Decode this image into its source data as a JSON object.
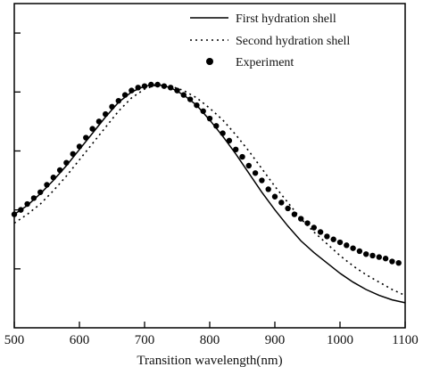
{
  "chart_data": {
    "type": "line",
    "title": "",
    "xlabel": "Transition wavelength(nm)",
    "ylabel": "",
    "xlim": [
      500,
      1100
    ],
    "ylim": [
      0,
      1.1
    ],
    "xticks": [
      500,
      600,
      700,
      800,
      900,
      1000,
      1100
    ],
    "xtick_labels": [
      "500",
      "600",
      "700",
      "800",
      "900",
      "1000",
      "1100"
    ],
    "grid": false,
    "legend_position": "top-right",
    "series": [
      {
        "name": "First hydration shell",
        "style": "solid",
        "color": "#000000",
        "x": [
          500,
          520,
          540,
          560,
          580,
          600,
          620,
          640,
          660,
          680,
          700,
          720,
          740,
          760,
          780,
          800,
          820,
          840,
          860,
          880,
          900,
          920,
          940,
          960,
          980,
          1000,
          1020,
          1040,
          1060,
          1080,
          1100
        ],
        "y": [
          0.385,
          0.415,
          0.455,
          0.5,
          0.55,
          0.605,
          0.66,
          0.715,
          0.765,
          0.8,
          0.82,
          0.825,
          0.815,
          0.79,
          0.755,
          0.705,
          0.65,
          0.59,
          0.525,
          0.46,
          0.4,
          0.345,
          0.295,
          0.255,
          0.22,
          0.185,
          0.155,
          0.13,
          0.11,
          0.095,
          0.085
        ]
      },
      {
        "name": "Second hydration shell",
        "style": "dotted",
        "color": "#000000",
        "x": [
          500,
          520,
          540,
          560,
          580,
          600,
          620,
          640,
          660,
          680,
          700,
          720,
          740,
          760,
          780,
          800,
          820,
          840,
          860,
          880,
          900,
          920,
          940,
          960,
          980,
          1000,
          1020,
          1040,
          1060,
          1080,
          1100
        ],
        "y": [
          0.355,
          0.385,
          0.42,
          0.465,
          0.515,
          0.57,
          0.625,
          0.68,
          0.735,
          0.78,
          0.81,
          0.825,
          0.82,
          0.805,
          0.78,
          0.745,
          0.705,
          0.655,
          0.6,
          0.54,
          0.48,
          0.425,
          0.37,
          0.325,
          0.285,
          0.245,
          0.21,
          0.18,
          0.155,
          0.13,
          0.11
        ]
      },
      {
        "name": "Experiment",
        "style": "markers",
        "color": "#000000",
        "x": [
          500,
          510,
          520,
          530,
          540,
          550,
          560,
          570,
          580,
          590,
          600,
          610,
          620,
          630,
          640,
          650,
          660,
          670,
          680,
          690,
          700,
          710,
          720,
          730,
          740,
          750,
          760,
          770,
          780,
          790,
          800,
          810,
          820,
          830,
          840,
          850,
          860,
          870,
          880,
          890,
          900,
          910,
          920,
          930,
          940,
          950,
          960,
          970,
          980,
          990,
          1000,
          1010,
          1020,
          1030,
          1040,
          1050,
          1060,
          1070,
          1080,
          1090
        ],
        "y": [
          0.385,
          0.4,
          0.42,
          0.44,
          0.46,
          0.485,
          0.51,
          0.535,
          0.56,
          0.59,
          0.615,
          0.645,
          0.675,
          0.7,
          0.725,
          0.75,
          0.77,
          0.79,
          0.805,
          0.815,
          0.82,
          0.825,
          0.825,
          0.82,
          0.815,
          0.805,
          0.79,
          0.775,
          0.755,
          0.735,
          0.71,
          0.685,
          0.66,
          0.635,
          0.605,
          0.58,
          0.55,
          0.525,
          0.5,
          0.47,
          0.445,
          0.425,
          0.405,
          0.385,
          0.37,
          0.355,
          0.34,
          0.325,
          0.31,
          0.3,
          0.29,
          0.28,
          0.27,
          0.26,
          0.25,
          0.245,
          0.24,
          0.235,
          0.225,
          0.22
        ]
      }
    ]
  }
}
